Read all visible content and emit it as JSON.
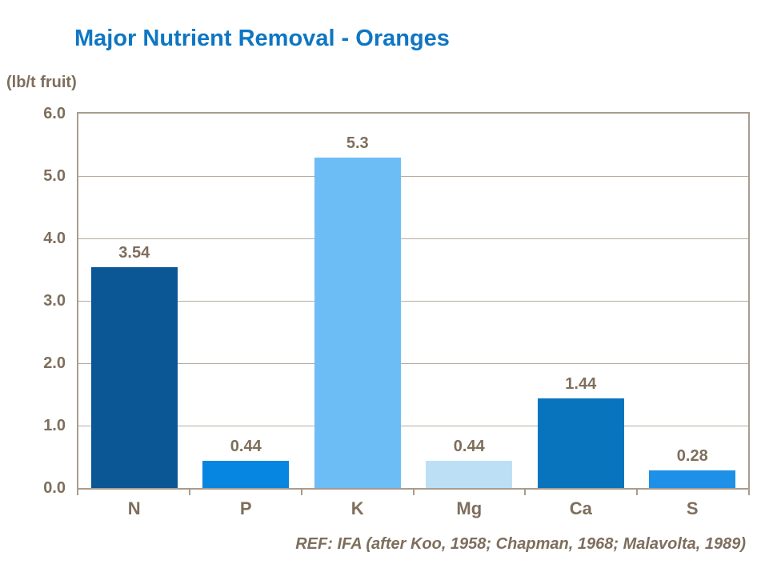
{
  "colors": {
    "text": "#7E6E5C",
    "grid": "#B5AC9F",
    "axis": "#A89C8E",
    "title": "#0E76C4"
  },
  "chart_data": {
    "type": "bar",
    "title": "Major Nutrient Removal - Oranges",
    "ylabel": "(lb/t fruit)",
    "xlabel": "",
    "categories": [
      "N",
      "P",
      "K",
      "Mg",
      "Ca",
      "S"
    ],
    "values": [
      3.54,
      0.44,
      5.3,
      0.44,
      1.44,
      0.28
    ],
    "value_labels": [
      "3.54",
      "0.44",
      "5.3",
      "0.44",
      "1.44",
      "0.28"
    ],
    "bar_colors": [
      "#0B5694",
      "#0685E1",
      "#6CBDF6",
      "#BDDFF6",
      "#0874BE",
      "#1E90E8"
    ],
    "ylim": [
      0,
      6
    ],
    "ytick_labels": [
      "0.0",
      "1.0",
      "2.0",
      "3.0",
      "4.0",
      "5.0",
      "6.0"
    ],
    "grid": true,
    "legend": false,
    "annotation": "REF: IFA (after Koo, 1958; Chapman, 1968; Malavolta, 1989)"
  }
}
